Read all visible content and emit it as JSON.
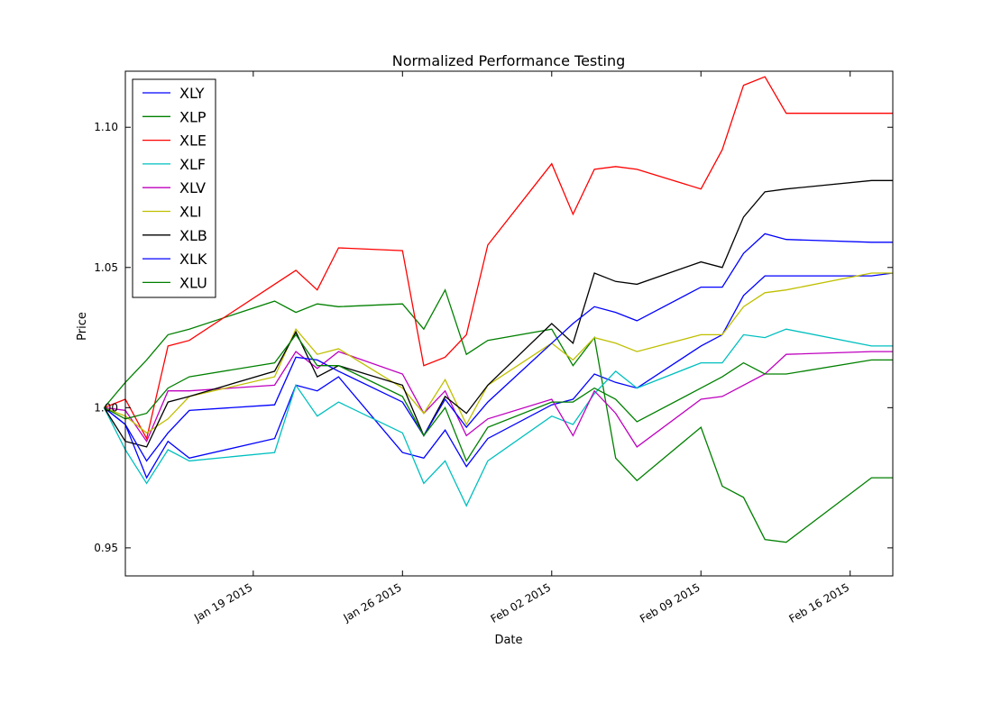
{
  "chart_data": {
    "type": "line",
    "title": "Normalized Performance Testing",
    "xlabel": "Date",
    "ylabel": "Price",
    "x": [
      "2015-01-12",
      "2015-01-13",
      "2015-01-14",
      "2015-01-15",
      "2015-01-16",
      "2015-01-20",
      "2015-01-21",
      "2015-01-22",
      "2015-01-23",
      "2015-01-26",
      "2015-01-27",
      "2015-01-28",
      "2015-01-29",
      "2015-01-30",
      "2015-02-02",
      "2015-02-03",
      "2015-02-04",
      "2015-02-05",
      "2015-02-06",
      "2015-02-09",
      "2015-02-10",
      "2015-02-11",
      "2015-02-12",
      "2015-02-13",
      "2015-02-17",
      "2015-02-18"
    ],
    "xlim": [
      "2015-01-13",
      "2015-02-18"
    ],
    "x_ticks": [
      {
        "value": "2015-01-19",
        "label": "Jan 19 2015"
      },
      {
        "value": "2015-01-26",
        "label": "Jan 26 2015"
      },
      {
        "value": "2015-02-02",
        "label": "Feb 02 2015"
      },
      {
        "value": "2015-02-09",
        "label": "Feb 09 2015"
      },
      {
        "value": "2015-02-16",
        "label": "Feb 16 2015"
      }
    ],
    "ylim": [
      0.94,
      1.12
    ],
    "y_ticks": [
      {
        "value": 0.95,
        "label": "0.95"
      },
      {
        "value": 1.0,
        "label": "1.00"
      },
      {
        "value": 1.05,
        "label": "1.05"
      },
      {
        "value": 1.1,
        "label": "1.10"
      }
    ],
    "grid": false,
    "legend_position": "upper-left",
    "series": [
      {
        "name": "XLY",
        "color": "#0000ff",
        "values": [
          1.0,
          0.994,
          0.975,
          0.988,
          0.982,
          0.989,
          1.008,
          1.006,
          1.011,
          0.984,
          0.982,
          0.992,
          0.979,
          0.989,
          1.001,
          1.003,
          1.012,
          1.009,
          1.007,
          1.022,
          1.026,
          1.04,
          1.047,
          1.047,
          1.047,
          1.048
        ]
      },
      {
        "name": "XLP",
        "color": "#008000",
        "values": [
          1.0,
          1.009,
          1.017,
          1.026,
          1.028,
          1.038,
          1.034,
          1.037,
          1.036,
          1.037,
          1.028,
          1.042,
          1.019,
          1.024,
          1.028,
          1.015,
          1.025,
          0.982,
          0.974,
          0.993,
          0.972,
          0.968,
          0.953,
          0.952,
          0.975,
          0.975
        ]
      },
      {
        "name": "XLE",
        "color": "#ff0000",
        "values": [
          1.0,
          1.003,
          0.989,
          1.022,
          1.024,
          1.044,
          1.049,
          1.042,
          1.057,
          1.056,
          1.015,
          1.018,
          1.026,
          1.058,
          1.087,
          1.069,
          1.085,
          1.086,
          1.085,
          1.078,
          1.092,
          1.115,
          1.118,
          1.105,
          1.105,
          1.105
        ]
      },
      {
        "name": "XLF",
        "color": "#00bfbf",
        "values": [
          1.0,
          0.985,
          0.973,
          0.985,
          0.981,
          0.984,
          1.008,
          0.997,
          1.002,
          0.991,
          0.973,
          0.981,
          0.965,
          0.981,
          0.997,
          0.994,
          1.005,
          1.013,
          1.007,
          1.016,
          1.016,
          1.026,
          1.025,
          1.028,
          1.022,
          1.022
        ]
      },
      {
        "name": "XLV",
        "color": "#bf00bf",
        "values": [
          1.0,
          0.999,
          0.988,
          1.006,
          1.006,
          1.008,
          1.02,
          1.014,
          1.02,
          1.012,
          0.998,
          1.006,
          0.99,
          0.996,
          1.003,
          0.99,
          1.006,
          0.998,
          0.986,
          1.003,
          1.004,
          1.008,
          1.012,
          1.019,
          1.02,
          1.02
        ]
      },
      {
        "name": "XLI",
        "color": "#bfbf00",
        "values": [
          1.0,
          0.997,
          0.991,
          0.996,
          1.004,
          1.011,
          1.028,
          1.019,
          1.021,
          1.007,
          0.998,
          1.01,
          0.994,
          1.008,
          1.023,
          1.017,
          1.025,
          1.023,
          1.02,
          1.026,
          1.026,
          1.036,
          1.041,
          1.042,
          1.048,
          1.048
        ]
      },
      {
        "name": "XLB",
        "color": "#000000",
        "values": [
          1.0,
          0.988,
          0.986,
          1.002,
          1.004,
          1.013,
          1.027,
          1.011,
          1.015,
          1.008,
          0.99,
          1.004,
          0.998,
          1.008,
          1.03,
          1.023,
          1.048,
          1.045,
          1.044,
          1.052,
          1.05,
          1.068,
          1.077,
          1.078,
          1.081,
          1.081
        ]
      },
      {
        "name": "XLK",
        "color": "#0000ff",
        "values": [
          1.0,
          0.994,
          0.981,
          0.991,
          0.999,
          1.001,
          1.018,
          1.017,
          1.013,
          1.002,
          0.99,
          1.003,
          0.993,
          1.002,
          1.023,
          1.03,
          1.036,
          1.034,
          1.031,
          1.043,
          1.043,
          1.055,
          1.062,
          1.06,
          1.059,
          1.059
        ]
      },
      {
        "name": "XLU",
        "color": "#008000",
        "values": [
          1.0,
          0.996,
          0.998,
          1.007,
          1.011,
          1.016,
          1.026,
          1.015,
          1.015,
          1.004,
          0.99,
          1.0,
          0.981,
          0.993,
          1.002,
          1.002,
          1.007,
          1.003,
          0.995,
          1.007,
          1.011,
          1.016,
          1.012,
          1.012,
          1.017,
          1.017
        ]
      }
    ]
  }
}
